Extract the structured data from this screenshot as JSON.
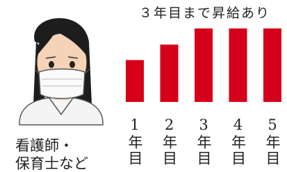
{
  "chart_data": {
    "type": "bar",
    "title": "３年目まで昇給あり",
    "caption": [
      "看護師・",
      "保育士など"
    ],
    "categories": [
      "1年目",
      "2年目",
      "3年目",
      "4年目",
      "5年目"
    ],
    "values": [
      57,
      78,
      100,
      100,
      100
    ],
    "color": "#d7001a",
    "ylim": [
      0,
      100
    ]
  }
}
